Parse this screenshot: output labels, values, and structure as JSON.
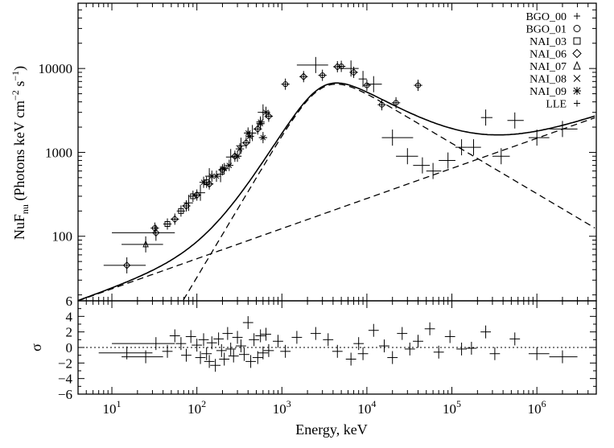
{
  "chart_data": {
    "type": "scatter",
    "x_scale": "log",
    "y_scale": "log",
    "xlabel": "Energy, keV",
    "ylabel": {
      "main": "NuF",
      "sub": "nu",
      "units_pre": " (Photons keV cm",
      "exp1": "−2",
      "units_mid": " s",
      "exp2": "−1",
      "units_post": ")"
    },
    "residual_ylabel": "σ",
    "xlim": [
      4,
      5000000
    ],
    "ylim": [
      17,
      60000
    ],
    "residual_ylim": [
      -6,
      6
    ],
    "x_ticks": [
      {
        "value": 10,
        "base": "10",
        "exp": "1"
      },
      {
        "value": 100,
        "base": "10",
        "exp": "2"
      },
      {
        "value": 1000,
        "base": "10",
        "exp": "3"
      },
      {
        "value": 10000,
        "base": "10",
        "exp": "4"
      },
      {
        "value": 100000,
        "base": "10",
        "exp": "5"
      },
      {
        "value": 1000000,
        "base": "10",
        "exp": "6"
      }
    ],
    "y_ticks": [
      {
        "value": 100,
        "label": "100"
      },
      {
        "value": 1000,
        "label": "1000"
      },
      {
        "value": 10000,
        "label": "10000"
      }
    ],
    "residual_ticks": [
      {
        "value": 6,
        "label": "6"
      },
      {
        "value": 4,
        "label": "4"
      },
      {
        "value": 2,
        "label": "2"
      },
      {
        "value": 0,
        "label": "0"
      },
      {
        "value": -2,
        "label": "−2"
      },
      {
        "value": -4,
        "label": "−4"
      },
      {
        "value": -6,
        "label": "−6"
      }
    ],
    "legend": [
      {
        "label": "BGO_00",
        "marker": "plus"
      },
      {
        "label": "BGO_01",
        "marker": "circle"
      },
      {
        "label": "NAI_03",
        "marker": "square"
      },
      {
        "label": "NAI_06",
        "marker": "diamond"
      },
      {
        "label": "NAI_07",
        "marker": "triangle"
      },
      {
        "label": "NAI_08",
        "marker": "cross"
      },
      {
        "label": "NAI_09",
        "marker": "asterisk"
      },
      {
        "label": "LLE",
        "marker": "plus"
      }
    ],
    "model": {
      "band_component": {
        "Ep_keV": 3000,
        "alpha": -0.3,
        "beta": -2.6,
        "peak": 10500,
        "style": "dashed"
      },
      "power_law_component": {
        "ref_E_keV": 4,
        "ref_value": 17,
        "index": 0.359,
        "style": "dashed"
      },
      "total": {
        "style": "solid"
      }
    },
    "series": [
      {
        "name": "NAI_07",
        "marker": "triangle",
        "points": [
          {
            "x": 25,
            "y": 80,
            "xlo": 13,
            "xhi": 40
          }
        ]
      },
      {
        "name": "NAI_06",
        "marker": "diamond",
        "points": [
          {
            "x": 15,
            "y": 45,
            "xlo": 8,
            "xhi": 25
          },
          {
            "x": 33,
            "y": 110,
            "xlo": 10,
            "xhi": 55
          },
          {
            "x": 55,
            "y": 160
          },
          {
            "x": 75,
            "y": 230
          },
          {
            "x": 100,
            "y": 310
          },
          {
            "x": 140,
            "y": 420
          },
          {
            "x": 200,
            "y": 620
          },
          {
            "x": 280,
            "y": 900
          },
          {
            "x": 380,
            "y": 1300
          },
          {
            "x": 520,
            "y": 1900
          },
          {
            "x": 700,
            "y": 2700
          },
          {
            "x": 1800,
            "y": 8000
          },
          {
            "x": 4500,
            "y": 10500
          },
          {
            "x": 7000,
            "y": 9000
          }
        ]
      },
      {
        "name": "NAI_03",
        "marker": "square",
        "points": [
          {
            "x": 45,
            "y": 140
          },
          {
            "x": 65,
            "y": 200
          },
          {
            "x": 90,
            "y": 300
          },
          {
            "x": 130,
            "y": 440
          }
        ]
      },
      {
        "name": "BGO_01",
        "marker": "circle",
        "points": [
          {
            "x": 32,
            "y": 125
          },
          {
            "x": 1100,
            "y": 6500
          },
          {
            "x": 3000,
            "y": 8300
          },
          {
            "x": 5000,
            "y": 10600
          },
          {
            "x": 10000,
            "y": 6300
          },
          {
            "x": 15000,
            "y": 3700
          },
          {
            "x": 22000,
            "y": 3900
          },
          {
            "x": 40000,
            "y": 6300
          }
        ]
      },
      {
        "name": "NAI_08",
        "marker": "cross",
        "points": [
          {
            "x": 120,
            "y": 440
          },
          {
            "x": 170,
            "y": 520
          },
          {
            "x": 240,
            "y": 700
          },
          {
            "x": 320,
            "y": 1100
          },
          {
            "x": 420,
            "y": 1550
          },
          {
            "x": 560,
            "y": 2300
          },
          {
            "x": 650,
            "y": 3000
          }
        ]
      },
      {
        "name": "NAI_09",
        "marker": "asterisk",
        "points": [
          {
            "x": 150,
            "y": 520
          },
          {
            "x": 210,
            "y": 640
          },
          {
            "x": 300,
            "y": 900
          },
          {
            "x": 400,
            "y": 1700
          },
          {
            "x": 560,
            "y": 2200
          },
          {
            "x": 600,
            "y": 1500
          }
        ]
      },
      {
        "name": "BGO_00",
        "marker": "plus",
        "points": [
          {
            "x": 80,
            "y": 250,
            "xlo": 70,
            "xhi": 90
          },
          {
            "x": 110,
            "y": 330,
            "xlo": 95,
            "xhi": 125
          },
          {
            "x": 140,
            "y": 520,
            "xlo": 125,
            "xhi": 155
          },
          {
            "x": 190,
            "y": 550,
            "xlo": 170,
            "xhi": 210
          },
          {
            "x": 250,
            "y": 880,
            "xlo": 220,
            "xhi": 280
          },
          {
            "x": 330,
            "y": 1200,
            "xlo": 290,
            "xhi": 370
          },
          {
            "x": 450,
            "y": 1700,
            "xlo": 400,
            "xhi": 500
          },
          {
            "x": 600,
            "y": 3000,
            "xlo": 520,
            "xhi": 680
          },
          {
            "x": 2500,
            "y": 11000,
            "xlo": 1500,
            "xhi": 3500
          },
          {
            "x": 6500,
            "y": 10000,
            "xlo": 5000,
            "xhi": 8000
          },
          {
            "x": 9000,
            "y": 7500,
            "xlo": 8000,
            "xhi": 10000
          },
          {
            "x": 12000,
            "y": 6500,
            "xlo": 10000,
            "xhi": 15000
          },
          {
            "x": 20000,
            "y": 1500,
            "xlo": 15000,
            "xhi": 35000
          },
          {
            "x": 30000,
            "y": 900,
            "xlo": 22000,
            "xhi": 40000
          },
          {
            "x": 45000,
            "y": 700,
            "xlo": 35000,
            "xhi": 55000
          },
          {
            "x": 60000,
            "y": 600,
            "xlo": 50000,
            "xhi": 75000
          },
          {
            "x": 90000,
            "y": 800,
            "xlo": 70000,
            "xhi": 110000
          },
          {
            "x": 130000,
            "y": 1150,
            "xlo": 110000,
            "xhi": 150000
          },
          {
            "x": 180000,
            "y": 1150,
            "xlo": 150000,
            "xhi": 220000
          },
          {
            "x": 250000,
            "y": 2600,
            "xlo": 220000,
            "xhi": 300000
          },
          {
            "x": 380000,
            "y": 900,
            "xlo": 300000,
            "xhi": 480000
          },
          {
            "x": 550000,
            "y": 2400,
            "xlo": 450000,
            "xhi": 700000
          }
        ]
      },
      {
        "name": "LLE",
        "marker": "plus",
        "points": [
          {
            "x": 1000000,
            "y": 1500,
            "xlo": 800000,
            "xhi": 1400000
          },
          {
            "x": 2000000,
            "y": 1900,
            "xlo": 1400000,
            "xhi": 3000000
          }
        ]
      }
    ],
    "residuals": [
      {
        "x": 15,
        "y": -0.7,
        "xlo": 7,
        "xhi": 30
      },
      {
        "x": 25,
        "y": -1.2,
        "xlo": 13,
        "xhi": 40
      },
      {
        "x": 33,
        "y": 0.5,
        "xlo": 10,
        "xhi": 55
      },
      {
        "x": 45,
        "y": -0.5
      },
      {
        "x": 55,
        "y": 1.5
      },
      {
        "x": 65,
        "y": 0.5
      },
      {
        "x": 75,
        "y": -1.0
      },
      {
        "x": 85,
        "y": 1.4
      },
      {
        "x": 100,
        "y": 0.3
      },
      {
        "x": 110,
        "y": -1.3
      },
      {
        "x": 120,
        "y": 1.0
      },
      {
        "x": 130,
        "y": -0.8
      },
      {
        "x": 140,
        "y": -1.8
      },
      {
        "x": 150,
        "y": 0.6
      },
      {
        "x": 165,
        "y": -2.3
      },
      {
        "x": 180,
        "y": 1.1
      },
      {
        "x": 195,
        "y": -0.4
      },
      {
        "x": 210,
        "y": -1.5
      },
      {
        "x": 230,
        "y": 1.8
      },
      {
        "x": 250,
        "y": -0.2
      },
      {
        "x": 270,
        "y": -1.1
      },
      {
        "x": 300,
        "y": 1.3
      },
      {
        "x": 330,
        "y": 0.2
      },
      {
        "x": 360,
        "y": -0.9
      },
      {
        "x": 400,
        "y": 3.2
      },
      {
        "x": 430,
        "y": -1.8
      },
      {
        "x": 470,
        "y": 1.0
      },
      {
        "x": 520,
        "y": -1.3
      },
      {
        "x": 560,
        "y": 1.5
      },
      {
        "x": 600,
        "y": -0.7
      },
      {
        "x": 650,
        "y": 1.7
      },
      {
        "x": 700,
        "y": -0.4
      },
      {
        "x": 900,
        "y": 0.8
      },
      {
        "x": 1100,
        "y": -0.5
      },
      {
        "x": 1500,
        "y": 1.3
      },
      {
        "x": 2500,
        "y": 1.8
      },
      {
        "x": 3500,
        "y": 1.0
      },
      {
        "x": 4500,
        "y": -0.5
      },
      {
        "x": 6500,
        "y": -1.5
      },
      {
        "x": 8000,
        "y": 0.5
      },
      {
        "x": 9000,
        "y": -0.8
      },
      {
        "x": 12000,
        "y": 2.2
      },
      {
        "x": 16000,
        "y": 0.2
      },
      {
        "x": 20000,
        "y": -1.3
      },
      {
        "x": 26000,
        "y": 1.8
      },
      {
        "x": 32000,
        "y": -0.2
      },
      {
        "x": 40000,
        "y": 0.8
      },
      {
        "x": 55000,
        "y": 2.4
      },
      {
        "x": 70000,
        "y": -0.6
      },
      {
        "x": 95000,
        "y": 1.4
      },
      {
        "x": 130000,
        "y": -0.2
      },
      {
        "x": 170000,
        "y": -0.1
      },
      {
        "x": 250000,
        "y": 2.0
      },
      {
        "x": 320000,
        "y": -0.8
      },
      {
        "x": 550000,
        "y": 1.1
      },
      {
        "x": 1000000,
        "y": -0.8,
        "xlo": 800000,
        "xhi": 1400000
      },
      {
        "x": 2000000,
        "y": -1.2,
        "xlo": 1400000,
        "xhi": 3000000
      }
    ]
  }
}
